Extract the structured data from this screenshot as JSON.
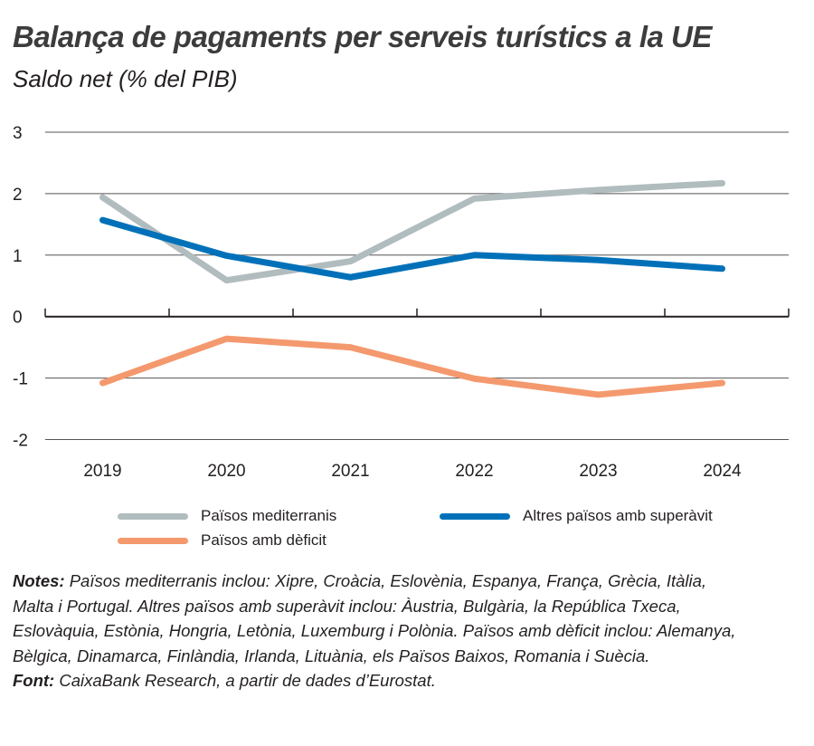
{
  "title": "Balança de pagaments per serveis turístics a la UE",
  "subtitle": "Saldo net (% del PIB)",
  "chart_data": {
    "type": "line",
    "categories": [
      "2019",
      "2020",
      "2021",
      "2022",
      "2023",
      "2024"
    ],
    "ylim": [
      -2,
      3
    ],
    "yticks": [
      "3",
      "2",
      "1",
      "0",
      "-1",
      "-2"
    ],
    "grid": true,
    "legend_position": "bottom",
    "series": [
      {
        "name": "Països mediterranis",
        "color": "#b1bcbf",
        "values": [
          1.94,
          0.59,
          0.9,
          1.92,
          2.06,
          2.17
        ]
      },
      {
        "name": "Altres països amb superàvit",
        "color": "#0071b9",
        "values": [
          1.57,
          0.99,
          0.64,
          1.0,
          0.92,
          0.78
        ]
      },
      {
        "name": "Països amb dèficit",
        "color": "#f4996e",
        "values": [
          -1.08,
          -0.36,
          -0.5,
          -1.01,
          -1.27,
          -1.08
        ]
      }
    ]
  },
  "notes": {
    "label": "Notes:",
    "text": " Països mediterranis inclou: Xipre, Croàcia, Eslovènia, Espanya, França, Grècia, Itàlia, Malta i Portugal. Altres països amb superàvit inclou: Àustria, Bulgària, la República Txeca, Eslovàquia, Estònia, Hongria, Letònia, Luxemburg i Polònia. Països amb dèficit inclou: Alemanya, Bèlgica, Dinamarca, Finlàndia, Irlanda, Lituània, els Països Baixos, Romania i Suècia.",
    "source_label": "Font:",
    "source_text": " CaixaBank Research, a partir de dades d’Eurostat."
  }
}
